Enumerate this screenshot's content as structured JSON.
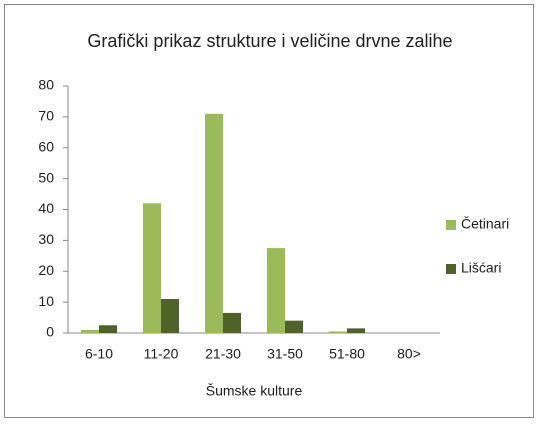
{
  "chart_data": {
    "type": "bar",
    "title": "Grafički prikaz strukture i veličine drvne zalihe",
    "x_label": "Šumske kulture",
    "categories": [
      "6-10",
      "11-20",
      "21-30",
      "31-50",
      "51-80",
      "80>"
    ],
    "series": [
      {
        "name": "Četinari",
        "color": "#9bbb59",
        "values": [
          1,
          42,
          71,
          27.5,
          0.5,
          0
        ]
      },
      {
        "name": "Lišćari",
        "color": "#4f6228",
        "values": [
          2.5,
          11,
          6.5,
          4,
          1.5,
          0
        ]
      }
    ],
    "ylim": [
      0,
      80
    ],
    "yticks": [
      0,
      10,
      20,
      30,
      40,
      50,
      60,
      70,
      80
    ],
    "grid": false,
    "legend": "right"
  }
}
